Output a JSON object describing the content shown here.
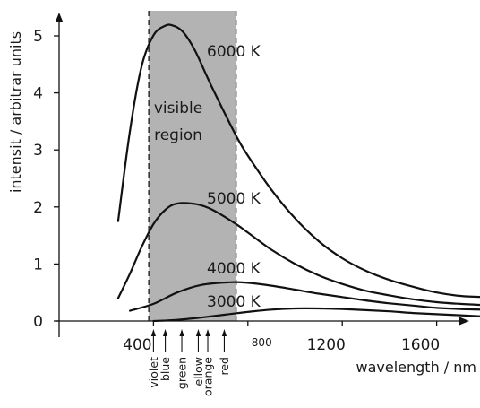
{
  "chart_data": {
    "type": "line",
    "xlabel": "wavelength / nm",
    "ylabel": "intensit  / arbitrar  units",
    "xlim": [
      0,
      2000
    ],
    "ylim": [
      0,
      5.5
    ],
    "xticks": [
      400,
      800,
      1200,
      1600
    ],
    "xtick_labels": [
      "400",
      "800",
      "1200",
      "1600"
    ],
    "yticks": [
      0,
      1,
      2,
      3,
      4,
      5
    ],
    "ytick_labels": [
      "0",
      "1",
      "2",
      "3",
      "4",
      "5"
    ],
    "grid": false,
    "visible_region": {
      "x_start": 380,
      "x_end": 750,
      "label_lines": [
        "visible",
        "region"
      ],
      "color": "#b3b3b3"
    },
    "color_bands": [
      {
        "name": "violet",
        "x": 400
      },
      {
        "name": "blue",
        "x": 450
      },
      {
        "name": "green",
        "x": 520
      },
      {
        "name": "ellow",
        "x": 590
      },
      {
        "name": "orange",
        "x": 630
      },
      {
        "name": "red",
        "x": 700
      }
    ],
    "series": [
      {
        "name": "6000 K",
        "x": [
          250,
          300,
          350,
          400,
          450,
          483,
          525,
          575,
          650,
          750,
          800,
          900,
          1000,
          1100,
          1200,
          1300,
          1400,
          1500,
          1600,
          1700,
          1800
        ],
        "y": [
          1.75,
          3.33,
          4.47,
          5.01,
          5.18,
          5.18,
          5.07,
          4.75,
          4.08,
          3.25,
          2.9,
          2.3,
          1.8,
          1.4,
          1.1,
          0.88,
          0.72,
          0.6,
          0.5,
          0.44,
          0.42
        ]
      },
      {
        "name": "5000 K",
        "x": [
          250,
          300,
          350,
          400,
          450,
          500,
          580,
          650,
          750,
          800,
          900,
          1000,
          1100,
          1200,
          1300,
          1400,
          1500,
          1600,
          1700,
          1800
        ],
        "y": [
          0.4,
          0.83,
          1.3,
          1.7,
          1.95,
          2.06,
          2.05,
          1.95,
          1.7,
          1.55,
          1.25,
          1.0,
          0.8,
          0.65,
          0.53,
          0.45,
          0.38,
          0.33,
          0.3,
          0.28
        ]
      },
      {
        "name": "4000 K",
        "x": [
          300,
          400,
          500,
          600,
          724,
          800,
          900,
          1000,
          1100,
          1200,
          1300,
          1400,
          1500,
          1600,
          1700,
          1800
        ],
        "y": [
          0.18,
          0.3,
          0.5,
          0.63,
          0.68,
          0.67,
          0.62,
          0.55,
          0.48,
          0.42,
          0.36,
          0.31,
          0.27,
          0.23,
          0.21,
          0.2
        ]
      },
      {
        "name": "3000 K",
        "x": [
          400,
          500,
          600,
          700,
          800,
          900,
          1000,
          1100,
          1200,
          1300,
          1400,
          1500,
          1600,
          1700,
          1800
        ],
        "y": [
          0.0,
          0.02,
          0.06,
          0.11,
          0.16,
          0.2,
          0.22,
          0.22,
          0.21,
          0.19,
          0.17,
          0.14,
          0.12,
          0.1,
          0.08
        ]
      }
    ]
  }
}
